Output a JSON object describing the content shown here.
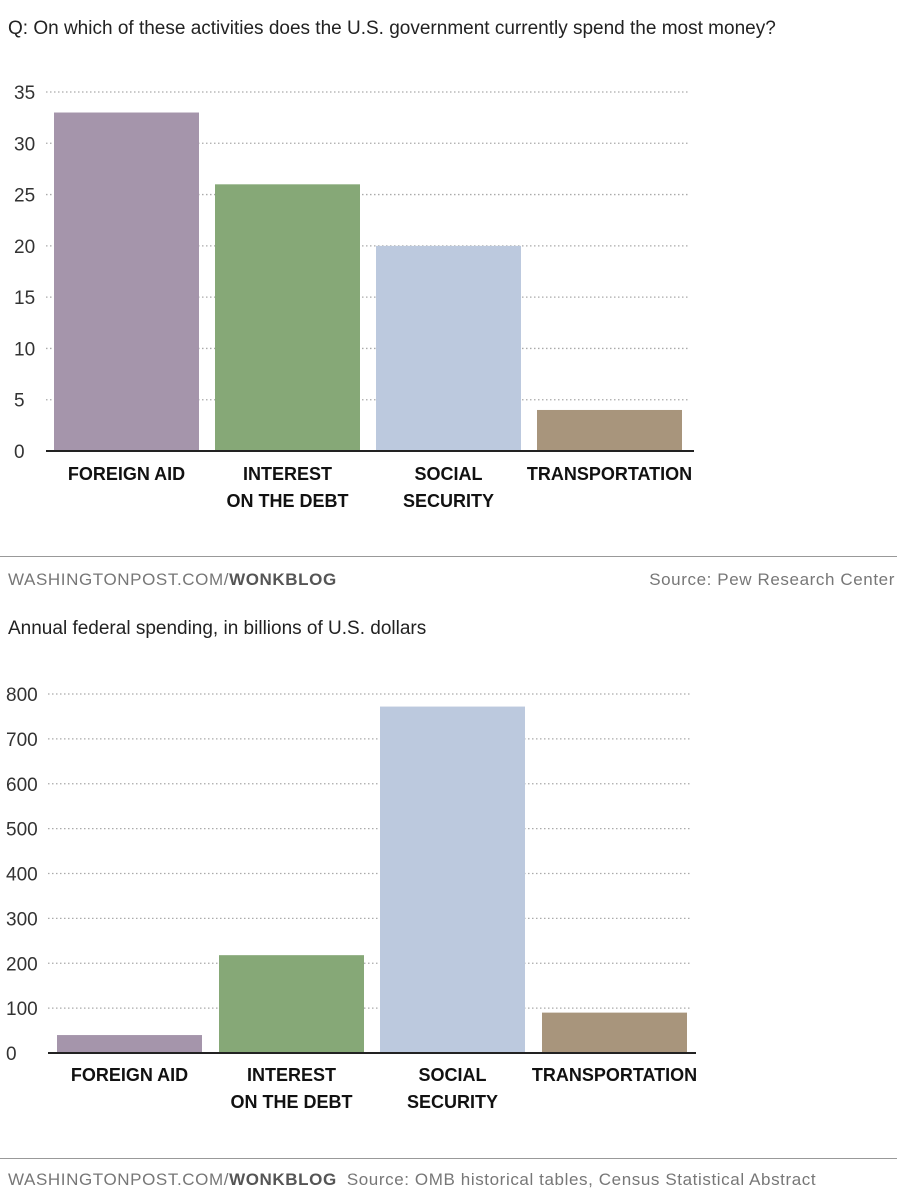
{
  "colors": {
    "foreign_aid": "#a595ab",
    "interest": "#86a877",
    "social_security": "#bcc9de",
    "transportation": "#a8957c",
    "grid": "#aaaaaa",
    "axis": "#222222"
  },
  "footer1": {
    "site": "WASHINGTONPOST.COM/",
    "blog": "WONKBLOG",
    "source": "Source: Pew Research Center"
  },
  "footer2": {
    "site": "WASHINGTONPOST.COM/",
    "blog": "WONKBLOG",
    "source": "Source: OMB historical tables, Census Statistical Abstract"
  },
  "chart_data": [
    {
      "type": "bar",
      "title": "Q: On which of these activities does the U.S. government currently spend the most money?",
      "categories": [
        [
          "FOREIGN AID"
        ],
        [
          "INTEREST",
          "ON THE DEBT"
        ],
        [
          "SOCIAL",
          "SECURITY"
        ],
        [
          "TRANSPORTATION"
        ]
      ],
      "values": [
        33,
        26,
        20,
        4
      ],
      "ylim": [
        0,
        35
      ],
      "yticks": [
        0,
        5,
        10,
        15,
        20,
        25,
        30,
        35
      ],
      "grid": true
    },
    {
      "type": "bar",
      "title": "Annual federal spending, in billions of U.S. dollars",
      "categories": [
        [
          "FOREIGN AID"
        ],
        [
          "INTEREST",
          "ON THE DEBT"
        ],
        [
          "SOCIAL",
          "SECURITY"
        ],
        [
          "TRANSPORTATION"
        ]
      ],
      "values": [
        40,
        218,
        772,
        90
      ],
      "ylim": [
        0,
        800
      ],
      "yticks": [
        0,
        100,
        200,
        300,
        400,
        500,
        600,
        700,
        800
      ],
      "grid": true
    }
  ]
}
